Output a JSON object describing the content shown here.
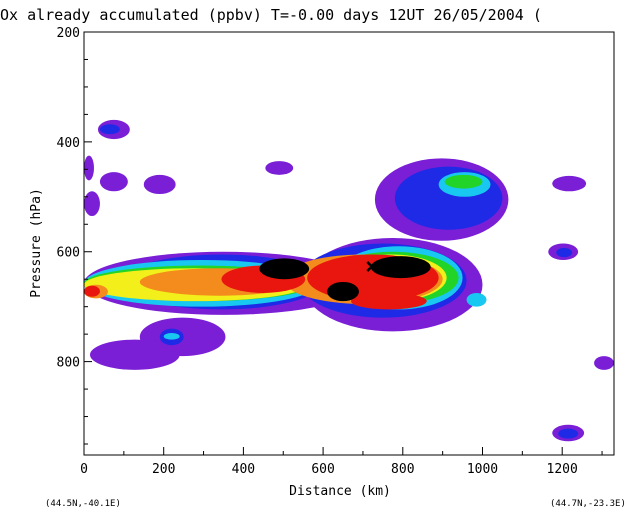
{
  "chart_data": {
    "type": "heatmap",
    "title": "Ox already accumulated  (ppbv)   T=-0.00 days  12UT 26/05/2004  (",
    "xlabel": "Distance  (km)",
    "ylabel": "Pressure  (hPa)",
    "xlim": [
      0,
      1330
    ],
    "ylim": [
      970,
      200
    ],
    "x_ticks": [
      "0",
      "200",
      "400",
      "600",
      "800",
      "1000",
      "1200"
    ],
    "y_ticks": [
      "200",
      "400",
      "600",
      "800"
    ],
    "left_endpoint": "(44.5N,-40.1E)",
    "right_endpoint": "(44.7N,-23.3E)",
    "grid": false,
    "colors": {
      "purple": "#7a1fd6",
      "blue": "#1f2ae6",
      "cyan": "#19c8f0",
      "green": "#22d428",
      "yellow": "#f2ef1a",
      "orange": "#f38c1c",
      "red": "#e8160e",
      "black": "#000000"
    },
    "contour_levels": [
      "purple",
      "blue",
      "cyan",
      "green",
      "yellow",
      "orange",
      "red",
      "black"
    ],
    "blobs": [
      {
        "x": [
          0,
          700
        ],
        "p": [
          600,
          715
        ],
        "level": "purple"
      },
      {
        "x": [
          550,
          1000
        ],
        "p": [
          575,
          745
        ],
        "level": "purple"
      },
      {
        "x": [
          730,
          1065
        ],
        "p": [
          430,
          580
        ],
        "level": "purple"
      },
      {
        "x": [
          0,
          25
        ],
        "p": [
          425,
          470
        ],
        "level": "purple"
      },
      {
        "x": [
          0,
          40
        ],
        "p": [
          490,
          535
        ],
        "level": "purple"
      },
      {
        "x": [
          140,
          355
        ],
        "p": [
          720,
          790
        ],
        "level": "purple"
      },
      {
        "x": [
          15,
          240
        ],
        "p": [
          760,
          815
        ],
        "level": "purple"
      },
      {
        "x": [
          40,
          110
        ],
        "p": [
          455,
          490
        ],
        "level": "purple"
      },
      {
        "x": [
          150,
          230
        ],
        "p": [
          460,
          495
        ],
        "level": "purple"
      },
      {
        "x": [
          35,
          115
        ],
        "p": [
          360,
          395
        ],
        "level": "purple"
      },
      {
        "x": [
          455,
          525
        ],
        "p": [
          435,
          460
        ],
        "level": "purple"
      },
      {
        "x": [
          1175,
          1260
        ],
        "p": [
          462,
          490
        ],
        "level": "purple"
      },
      {
        "x": [
          1165,
          1240
        ],
        "p": [
          585,
          615
        ],
        "level": "purple"
      },
      {
        "x": [
          1280,
          1330
        ],
        "p": [
          790,
          815
        ],
        "level": "purple"
      },
      {
        "x": [
          1175,
          1255
        ],
        "p": [
          915,
          945
        ],
        "level": "purple"
      },
      {
        "x": [
          90,
          600
        ],
        "p": [
          605,
          705
        ],
        "level": "blue"
      },
      {
        "x": [
          540,
          960
        ],
        "p": [
          585,
          720
        ],
        "level": "blue"
      },
      {
        "x": [
          780,
          1050
        ],
        "p": [
          445,
          560
        ],
        "level": "blue"
      },
      {
        "x": [
          40,
          90
        ],
        "p": [
          368,
          386
        ],
        "level": "blue"
      },
      {
        "x": [
          190,
          250
        ],
        "p": [
          740,
          770
        ],
        "level": "blue"
      },
      {
        "x": [
          1190,
          1240
        ],
        "p": [
          922,
          940
        ],
        "level": "blue"
      },
      {
        "x": [
          1185,
          1225
        ],
        "p": [
          593,
          610
        ],
        "level": "blue"
      },
      {
        "x": [
          0,
          590
        ],
        "p": [
          615,
          700
        ],
        "level": "cyan"
      },
      {
        "x": [
          630,
          950
        ],
        "p": [
          590,
          705
        ],
        "level": "cyan"
      },
      {
        "x": [
          890,
          1020
        ],
        "p": [
          455,
          500
        ],
        "level": "cyan"
      },
      {
        "x": [
          200,
          240
        ],
        "p": [
          748,
          760
        ],
        "level": "cyan"
      },
      {
        "x": [
          0,
          580
        ],
        "p": [
          625,
          690
        ],
        "level": "green"
      },
      {
        "x": [
          610,
          940
        ],
        "p": [
          600,
          695
        ],
        "level": "green"
      },
      {
        "x": [
          905,
          1000
        ],
        "p": [
          460,
          485
        ],
        "level": "green"
      },
      {
        "x": [
          0,
          560
        ],
        "p": [
          630,
          690
        ],
        "level": "yellow"
      },
      {
        "x": [
          630,
          910
        ],
        "p": [
          605,
          690
        ],
        "level": "yellow"
      },
      {
        "x": [
          0,
          60
        ],
        "p": [
          660,
          685
        ],
        "level": "orange"
      },
      {
        "x": [
          140,
          540
        ],
        "p": [
          630,
          680
        ],
        "level": "orange"
      },
      {
        "x": [
          500,
          900
        ],
        "p": [
          605,
          695
        ],
        "level": "orange"
      },
      {
        "x": [
          345,
          555
        ],
        "p": [
          625,
          675
        ],
        "level": "red"
      },
      {
        "x": [
          560,
          890
        ],
        "p": [
          605,
          690
        ],
        "level": "red"
      },
      {
        "x": [
          0,
          40
        ],
        "p": [
          662,
          682
        ],
        "level": "red"
      },
      {
        "x": [
          440,
          565
        ],
        "p": [
          612,
          650
        ],
        "level": "black"
      },
      {
        "x": [
          720,
          870
        ],
        "p": [
          608,
          648
        ],
        "level": "black"
      },
      {
        "x": [
          610,
          690
        ],
        "p": [
          655,
          690
        ],
        "level": "black"
      },
      {
        "x": [
          960,
          1010
        ],
        "p": [
          675,
          700
        ],
        "level": "cyan"
      },
      {
        "x": [
          670,
          860
        ],
        "p": [
          675,
          705
        ],
        "level": "red"
      }
    ],
    "marker": {
      "symbol": "×",
      "x": 722,
      "p": 625
    }
  }
}
